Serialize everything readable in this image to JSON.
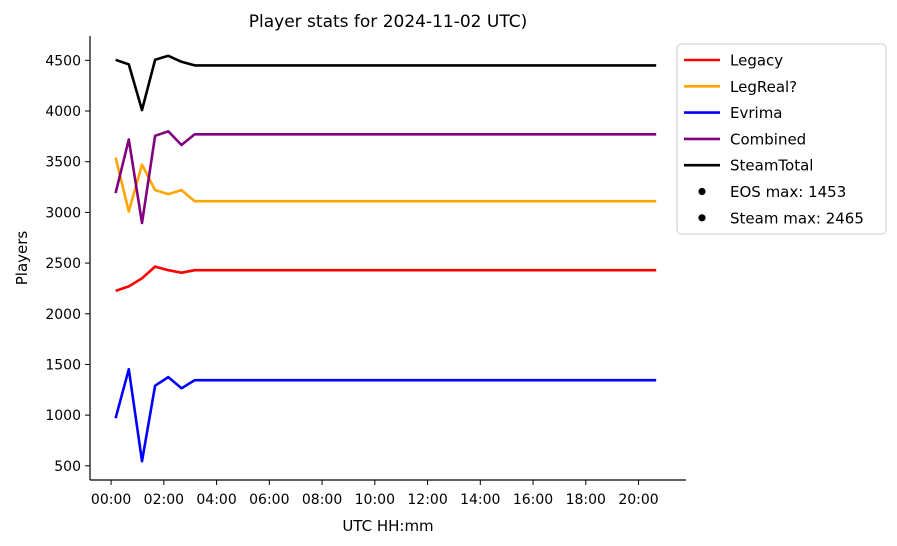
{
  "chart_data": {
    "type": "line",
    "title": "Player stats for 2024-11-02 UTC)",
    "xlabel": "UTC HH:mm",
    "ylabel": "Players",
    "x_unit": "hours",
    "xlim": [
      -0.8,
      21.8
    ],
    "ylim": [
      360,
      4740
    ],
    "x_ticks": [
      0,
      2,
      4,
      6,
      8,
      10,
      12,
      14,
      16,
      18,
      20
    ],
    "x_tick_labels": [
      "00:00",
      "02:00",
      "04:00",
      "06:00",
      "08:00",
      "10:00",
      "12:00",
      "14:00",
      "16:00",
      "18:00",
      "20:00"
    ],
    "y_ticks": [
      500,
      1000,
      1500,
      2000,
      2500,
      3000,
      3500,
      4000,
      4500
    ],
    "y_tick_labels": [
      "500",
      "1000",
      "1500",
      "2000",
      "2500",
      "3000",
      "3500",
      "4000",
      "4500"
    ],
    "x": [
      0.17,
      0.67,
      1.17,
      1.67,
      2.17,
      2.67,
      3.17,
      20.67
    ],
    "series": [
      {
        "name": "Legacy",
        "color": "#ff0000",
        "values": [
          2225,
          2270,
          2350,
          2465,
          2430,
          2405,
          2430,
          2430
        ]
      },
      {
        "name": "LegReal?",
        "color": "#ffa500",
        "values": [
          3540,
          3010,
          3470,
          3220,
          3180,
          3220,
          3110,
          3110
        ]
      },
      {
        "name": "Evrima",
        "color": "#0000ff",
        "values": [
          970,
          1453,
          545,
          1290,
          1375,
          1265,
          1345,
          1345
        ]
      },
      {
        "name": "Combined",
        "color": "#800080",
        "values": [
          3190,
          3720,
          2895,
          3755,
          3800,
          3665,
          3770,
          3770
        ]
      },
      {
        "name": "SteamTotal",
        "color": "#000000",
        "values": [
          4505,
          4460,
          4010,
          4505,
          4545,
          4485,
          4450,
          4450
        ]
      }
    ],
    "legend": {
      "placement": "outside-right-top",
      "extra_entries": [
        {
          "label": "EOS max: 1453",
          "marker": "dot",
          "color": "#000000"
        },
        {
          "label": "Steam max: 2465",
          "marker": "dot",
          "color": "#000000"
        }
      ]
    },
    "grid": false
  }
}
